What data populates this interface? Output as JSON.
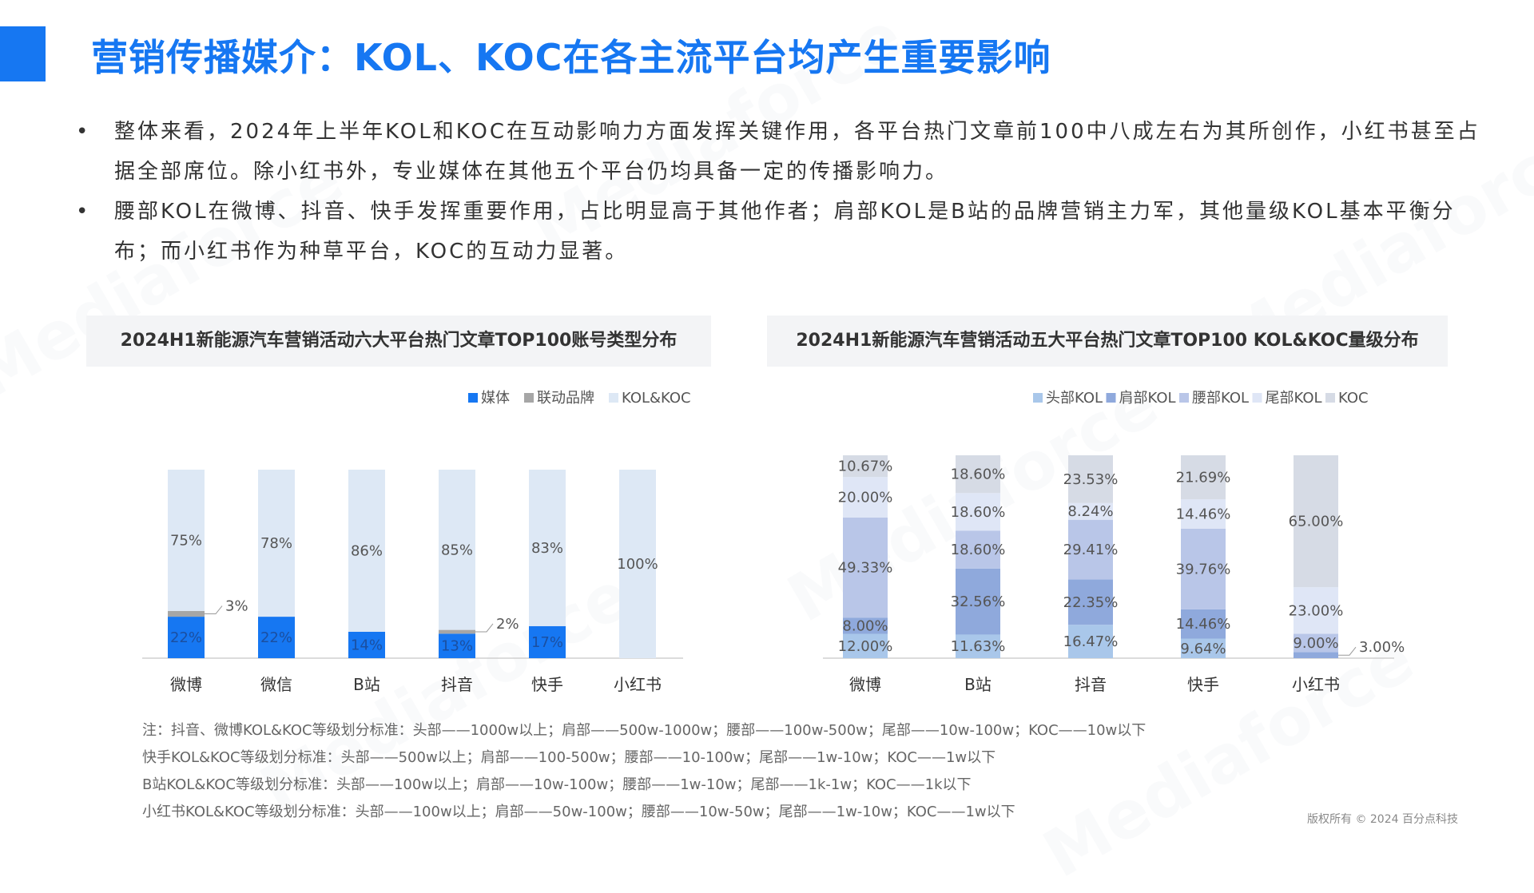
{
  "title": "营销传播媒介：KOL、KOC在各主流平台均产生重要影响",
  "bullets": [
    "整体来看，2024年上半年KOL和KOC在互动影响力方面发挥关键作用，各平台热门文章前100中八成左右为其所创作，小红书甚至占据全部席位。除小红书外，专业媒体在其他五个平台仍均具备一定的传播影响力。",
    "腰部KOL在微博、抖音、快手发挥重要作用，占比明显高于其他作者；肩部KOL是B站的品牌营销主力军，其他量级KOL基本平衡分布；而小红书作为种草平台，KOC的互动力显著。"
  ],
  "watermark": "Mediaforce",
  "chart_data": [
    {
      "type": "bar",
      "stacked": true,
      "title": "2024H1新能源汽车营销活动六大平台热门文章TOP100账号类型分布",
      "categories": [
        "微博",
        "微信",
        "B站",
        "抖音",
        "快手",
        "小红书"
      ],
      "legend_position": "top-right",
      "series": [
        {
          "name": "媒体",
          "color": "#1677f2",
          "values": [
            22,
            22,
            14,
            13,
            17,
            0
          ],
          "labels": [
            "22%",
            "22%",
            "14%",
            "13%",
            "17%",
            ""
          ]
        },
        {
          "name": "联动品牌",
          "color": "#a6a6a6",
          "values": [
            3,
            0,
            0,
            2,
            0,
            0
          ],
          "labels": [
            "3%",
            "",
            "",
            "2%",
            "",
            ""
          ]
        },
        {
          "name": "KOL&KOC",
          "color": "#dde8f5",
          "values": [
            75,
            78,
            86,
            85,
            83,
            100
          ],
          "labels": [
            "75%",
            "78%",
            "86%",
            "85%",
            "83%",
            "100%"
          ]
        }
      ]
    },
    {
      "type": "bar",
      "stacked": true,
      "title": "2024H1新能源汽车营销活动五大平台热门文章TOP100 KOL&KOC量级分布",
      "categories": [
        "微博",
        "B站",
        "抖音",
        "快手",
        "小红书"
      ],
      "legend_position": "top-right",
      "series": [
        {
          "name": "头部KOL",
          "color": "#a9c7ea",
          "values": [
            12.0,
            11.63,
            16.47,
            9.64,
            0
          ],
          "labels": [
            "12.00%",
            "11.63%",
            "16.47%",
            "9.64%",
            ""
          ]
        },
        {
          "name": "肩部KOL",
          "color": "#8fa9dc",
          "values": [
            8.0,
            32.56,
            22.35,
            14.46,
            3.0
          ],
          "labels": [
            "8.00%",
            "32.56%",
            "22.35%",
            "14.46%",
            "3.00%"
          ]
        },
        {
          "name": "腰部KOL",
          "color": "#b9c6e8",
          "values": [
            49.33,
            18.6,
            29.41,
            39.76,
            9.0
          ],
          "labels": [
            "49.33%",
            "18.60%",
            "29.41%",
            "39.76%",
            "9.00%"
          ]
        },
        {
          "name": "尾部KOL",
          "color": "#dfe6f6",
          "values": [
            20.0,
            18.6,
            8.24,
            14.46,
            23.0
          ],
          "labels": [
            "20.00%",
            "18.60%",
            "8.24%",
            "14.46%",
            "23.00%"
          ]
        },
        {
          "name": "KOC",
          "color": "#d6dbe5",
          "values": [
            10.67,
            18.6,
            23.53,
            21.69,
            65.0
          ],
          "labels": [
            "10.67%",
            "18.60%",
            "23.53%",
            "21.69%",
            "65.00%"
          ]
        }
      ]
    }
  ],
  "notes": [
    "注：抖音、微博KOL&KOC等级划分标准：头部——1000w以上；肩部——500w-1000w；腰部——100w-500w；尾部——10w-100w；KOC——10w以下",
    "快手KOL&KOC等级划分标准：头部——500w以上；肩部——100-500w；腰部——10-100w；尾部——1w-10w；KOC——1w以下",
    "B站KOL&KOC等级划分标准：头部——100w以上；肩部——10w-100w；腰部——1w-10w；尾部——1k-1w；KOC——1k以下",
    "小红书KOL&KOC等级划分标准：头部——100w以上；肩部——50w-100w；腰部——10w-50w；尾部——1w-10w；KOC——1w以下"
  ],
  "copyright": "版权所有 © 2024 百分点科技"
}
